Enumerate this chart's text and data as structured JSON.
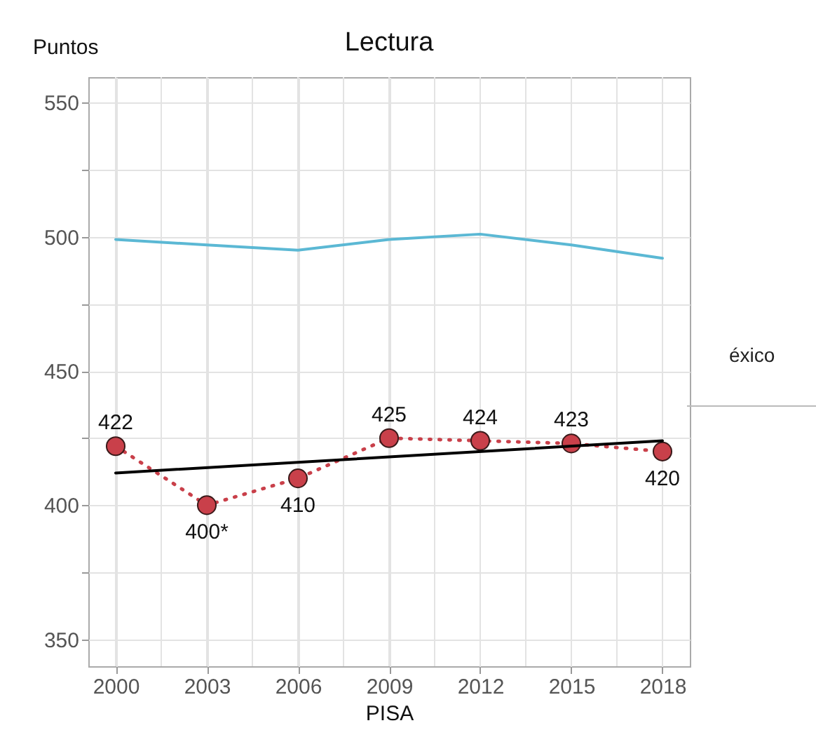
{
  "chart_data": {
    "type": "line",
    "title": "Lectura",
    "xlabel": "PISA",
    "ylabel": "Puntos",
    "x": [
      2000,
      2003,
      2006,
      2009,
      2012,
      2015,
      2018
    ],
    "xlim": [
      1999.1,
      2018.9
    ],
    "ylim": [
      340,
      559.5
    ],
    "xticks": [
      2000,
      {
        "value": 2001.5,
        "label": null
      },
      2003,
      {
        "value": 2004.5,
        "label": null
      },
      2006,
      {
        "value": 2007.5,
        "label": null
      },
      2009,
      {
        "value": 2010.5,
        "label": null
      },
      2012,
      {
        "value": 2013.5,
        "label": null
      },
      2015,
      {
        "value": 2016.5,
        "label": null
      },
      2018
    ],
    "yticks": [
      350,
      {
        "value": 375,
        "label": null
      },
      400,
      {
        "value": 425,
        "label": null
      },
      450,
      {
        "value": 475,
        "label": null
      },
      500,
      {
        "value": 525,
        "label": null
      },
      550
    ],
    "grid": true,
    "series": [
      {
        "color": "#5bb8d4",
        "values": [
          499,
          497,
          495,
          499,
          501,
          497,
          492
        ],
        "line_style": "solid",
        "marker": "none"
      },
      {
        "color": "#c9404a",
        "values": [
          422,
          400,
          410,
          425,
          424,
          423,
          420
        ],
        "line_style": "dotted",
        "marker": "circle",
        "value_labels": [
          "422",
          "400*",
          "410",
          "425",
          "424",
          "423",
          "420"
        ]
      },
      {
        "type": "line",
        "color": "#000000",
        "x": [
          2000,
          2018
        ],
        "values": [
          412,
          424
        ],
        "line_style": "solid",
        "marker": "none"
      }
    ],
    "annotations": [
      "éxico"
    ]
  }
}
